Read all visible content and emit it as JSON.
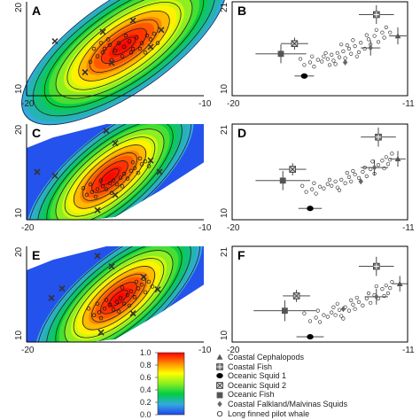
{
  "chart_data": [
    {
      "panel": "A",
      "type": "heatmap",
      "subtype": "contour-density-with-scatter",
      "xlim": [
        -20,
        -10
      ],
      "ylim": [
        10,
        20
      ],
      "xticks": [
        "-20",
        "-10"
      ],
      "yticks": [
        "10",
        "20"
      ],
      "density_peak": {
        "x": -14.5,
        "y": 15.3
      },
      "density_spread": {
        "sx": 3.6,
        "sy": 2.6,
        "rotation_deg": 35
      },
      "field_shape": "ellipse",
      "markers_x": [
        [
          -18.4,
          15.8
        ],
        [
          -15.7,
          16.8
        ],
        [
          -14.0,
          18.0
        ],
        [
          -12.4,
          17.0
        ],
        [
          -13.0,
          15.2
        ],
        [
          -15.2,
          13.5
        ],
        [
          -16.7,
          12.5
        ]
      ],
      "points": [
        [
          -15.6,
          15.0
        ],
        [
          -15.3,
          15.4
        ],
        [
          -15.0,
          14.8
        ],
        [
          -14.8,
          15.6
        ],
        [
          -14.5,
          15.2
        ],
        [
          -14.2,
          15.8
        ],
        [
          -14.0,
          15.0
        ],
        [
          -13.8,
          16.2
        ],
        [
          -13.5,
          15.6
        ],
        [
          -13.2,
          16.4
        ],
        [
          -16.0,
          14.2
        ],
        [
          -15.7,
          14.6
        ],
        [
          -14.6,
          14.2
        ],
        [
          -14.1,
          14.6
        ],
        [
          -13.6,
          15.0
        ],
        [
          -16.4,
          13.6
        ],
        [
          -15.2,
          13.8
        ],
        [
          -13.0,
          16.0
        ],
        [
          -12.8,
          16.6
        ],
        [
          -14.4,
          16.4
        ],
        [
          -15.8,
          15.6
        ],
        [
          -16.2,
          15.0
        ],
        [
          -13.3,
          14.6
        ],
        [
          -12.6,
          15.6
        ],
        [
          -15.4,
          16.0
        ]
      ]
    },
    {
      "panel": "B",
      "type": "scatter",
      "xlim": [
        -20,
        -11
      ],
      "ylim": [
        10,
        21
      ],
      "xticks": [
        "-20",
        "-11"
      ],
      "yticks": [
        "10",
        "21"
      ],
      "error_points": [
        {
          "group": "Coastal Cephalopods",
          "x": -11.5,
          "y": 17.0,
          "xerr": 0.45,
          "yerr": 1.0
        },
        {
          "group": "Coastal Fish",
          "x": -12.6,
          "y": 19.5,
          "xerr": 0.9,
          "yerr": 1.1
        },
        {
          "group": "Oceanic Squid 1",
          "x": -16.3,
          "y": 12.3,
          "xerr": 0.5,
          "yerr": 0
        },
        {
          "group": "Oceanic Squid 2",
          "x": -16.8,
          "y": 16.1,
          "xerr": 0.7,
          "yerr": 0.7
        },
        {
          "group": "Oceanic Fish",
          "x": -17.5,
          "y": 14.9,
          "xerr": 1.3,
          "yerr": 1.1
        },
        {
          "group": "Coastal Falkland/Malvinas Squids",
          "x": -14.2,
          "y": 13.9,
          "xerr": 0,
          "yerr": 0
        },
        {
          "group": "Coastal Falkland/Malvinas Squids",
          "x": -12.9,
          "y": 15.6,
          "xerr": 0.5,
          "yerr": 0.9
        }
      ],
      "points": [
        [
          -16.3,
          13.6
        ],
        [
          -16.0,
          13.9
        ],
        [
          -15.8,
          13.4
        ],
        [
          -15.6,
          14.2
        ],
        [
          -15.4,
          14.0
        ],
        [
          -15.3,
          14.6
        ],
        [
          -15.1,
          14.3
        ],
        [
          -14.9,
          14.8
        ],
        [
          -14.8,
          14.1
        ],
        [
          -14.6,
          15.0
        ],
        [
          -14.5,
          14.5
        ],
        [
          -14.3,
          15.2
        ],
        [
          -14.2,
          14.4
        ],
        [
          -14.0,
          15.5
        ],
        [
          -13.9,
          14.9
        ],
        [
          -13.7,
          15.8
        ],
        [
          -13.5,
          15.1
        ],
        [
          -13.4,
          16.2
        ],
        [
          -13.2,
          15.5
        ],
        [
          -13.0,
          16.6
        ],
        [
          -12.9,
          16.0
        ],
        [
          -12.7,
          17.0
        ],
        [
          -12.5,
          16.3
        ],
        [
          -12.3,
          17.4
        ],
        [
          -15.9,
          14.6
        ],
        [
          -15.2,
          15.0
        ],
        [
          -14.7,
          13.7
        ],
        [
          -14.1,
          15.9
        ],
        [
          -13.6,
          14.6
        ],
        [
          -13.1,
          17.1
        ],
        [
          -12.6,
          17.7
        ],
        [
          -12.2,
          16.8
        ],
        [
          -16.5,
          14.3
        ],
        [
          -15.0,
          13.6
        ],
        [
          -14.4,
          16.0
        ],
        [
          -13.8,
          16.5
        ],
        [
          -12.1,
          18.0
        ],
        [
          -11.9,
          17.4
        ]
      ]
    },
    {
      "panel": "C",
      "type": "heatmap",
      "subtype": "contour-density-with-scatter",
      "xlim": [
        -20,
        -10
      ],
      "ylim": [
        10,
        20
      ],
      "xticks": [
        "-20",
        "-10"
      ],
      "yticks": [
        "10",
        "20"
      ],
      "density_peak": {
        "x": -15.3,
        "y": 14.5
      },
      "density_spread": {
        "sx": 3.0,
        "sy": 2.2,
        "rotation_deg": 40
      },
      "field_shape": "diagonal-band",
      "markers_x": [
        [
          -15.5,
          19.3
        ],
        [
          -19.4,
          15.0
        ],
        [
          -15.0,
          18.0
        ],
        [
          -13.0,
          16.2
        ],
        [
          -12.5,
          15.0
        ],
        [
          -15.0,
          12.6
        ],
        [
          -16.0,
          11.0
        ],
        [
          -18.4,
          14.6
        ]
      ],
      "points": [
        [
          -16.6,
          12.6
        ],
        [
          -16.3,
          12.9
        ],
        [
          -16.0,
          13.2
        ],
        [
          -15.7,
          13.5
        ],
        [
          -15.5,
          13.2
        ],
        [
          -15.3,
          13.8
        ],
        [
          -15.1,
          14.1
        ],
        [
          -14.9,
          13.7
        ],
        [
          -14.7,
          14.4
        ],
        [
          -14.5,
          14.8
        ],
        [
          -14.3,
          14.3
        ],
        [
          -14.1,
          15.1
        ],
        [
          -13.9,
          15.4
        ],
        [
          -13.7,
          14.9
        ],
        [
          -13.5,
          15.8
        ],
        [
          -13.3,
          16.1
        ],
        [
          -16.8,
          13.3
        ],
        [
          -16.1,
          12.4
        ],
        [
          -15.2,
          12.8
        ],
        [
          -14.6,
          13.5
        ],
        [
          -13.6,
          16.4
        ],
        [
          -13.1,
          15.6
        ],
        [
          -14.0,
          16.0
        ],
        [
          -15.8,
          14.1
        ],
        [
          -16.4,
          13.7
        ]
      ]
    },
    {
      "panel": "D",
      "type": "scatter",
      "xlim": [
        -20,
        -11
      ],
      "ylim": [
        10,
        21
      ],
      "xticks": [
        "-20",
        "-11"
      ],
      "yticks": [
        "10",
        "21"
      ],
      "error_points": [
        {
          "group": "Coastal Cephalopods",
          "x": -11.5,
          "y": 17.0,
          "xerr": 0.4,
          "yerr": 0.9
        },
        {
          "group": "Coastal Fish",
          "x": -12.5,
          "y": 19.5,
          "xerr": 0.9,
          "yerr": 1.1
        },
        {
          "group": "Oceanic Squid 1",
          "x": -16.0,
          "y": 11.3,
          "xerr": 0.6,
          "yerr": 0
        },
        {
          "group": "Oceanic Squid 2",
          "x": -16.9,
          "y": 15.8,
          "xerr": 0.7,
          "yerr": 0.7
        },
        {
          "group": "Oceanic Fish",
          "x": -17.4,
          "y": 14.5,
          "xerr": 1.4,
          "yerr": 1.1
        },
        {
          "group": "Coastal Falkland/Malvinas Squids",
          "x": -13.4,
          "y": 14.4,
          "xerr": 0,
          "yerr": 0
        },
        {
          "group": "Coastal Falkland/Malvinas Squids",
          "x": -12.7,
          "y": 16.0,
          "xerr": 0.7,
          "yerr": 0.9
        }
      ],
      "points": [
        [
          -16.2,
          13.2
        ],
        [
          -15.9,
          13.5
        ],
        [
          -15.7,
          13.0
        ],
        [
          -15.5,
          13.8
        ],
        [
          -15.3,
          13.6
        ],
        [
          -15.1,
          14.1
        ],
        [
          -14.9,
          13.9
        ],
        [
          -14.7,
          14.4
        ],
        [
          -14.6,
          13.7
        ],
        [
          -14.4,
          14.6
        ],
        [
          -14.2,
          14.2
        ],
        [
          -14.0,
          14.9
        ],
        [
          -13.9,
          14.4
        ],
        [
          -13.7,
          15.2
        ],
        [
          -13.5,
          14.8
        ],
        [
          -13.3,
          15.5
        ],
        [
          -13.1,
          15.0
        ],
        [
          -12.9,
          15.8
        ],
        [
          -12.7,
          15.3
        ],
        [
          -12.5,
          16.3
        ],
        [
          -12.3,
          16.8
        ],
        [
          -12.1,
          17.2
        ],
        [
          -11.9,
          16.9
        ],
        [
          -15.8,
          14.2
        ],
        [
          -15.0,
          14.6
        ],
        [
          -14.5,
          13.4
        ],
        [
          -13.8,
          15.6
        ],
        [
          -13.2,
          16.0
        ],
        [
          -12.8,
          16.7
        ],
        [
          -12.2,
          15.9
        ],
        [
          -16.4,
          13.9
        ],
        [
          -14.1,
          15.4
        ],
        [
          -11.8,
          17.6
        ],
        [
          -12.0,
          16.4
        ]
      ]
    },
    {
      "panel": "E",
      "type": "heatmap",
      "subtype": "contour-density-with-scatter",
      "xlim": [
        -20,
        -10
      ],
      "ylim": [
        10,
        20
      ],
      "xticks": [
        "-20",
        "-10"
      ],
      "yticks": [
        "10",
        "20"
      ],
      "density_peak": {
        "x": -14.8,
        "y": 14.6
      },
      "density_spread": {
        "sx": 3.0,
        "sy": 2.2,
        "rotation_deg": 40
      },
      "field_shape": "diagonal-band",
      "markers_x": [
        [
          -16.0,
          19.0
        ],
        [
          -18.0,
          15.6
        ],
        [
          -15.2,
          17.9
        ],
        [
          -13.4,
          16.8
        ],
        [
          -12.6,
          15.5
        ],
        [
          -14.0,
          13.0
        ],
        [
          -15.8,
          11.0
        ],
        [
          -18.6,
          14.6
        ]
      ],
      "points": [
        [
          -16.2,
          12.8
        ],
        [
          -15.9,
          13.1
        ],
        [
          -15.6,
          13.5
        ],
        [
          -15.3,
          13.9
        ],
        [
          -15.1,
          13.4
        ],
        [
          -14.9,
          14.2
        ],
        [
          -14.7,
          14.6
        ],
        [
          -14.5,
          14.0
        ],
        [
          -14.3,
          14.9
        ],
        [
          -14.1,
          15.3
        ],
        [
          -13.9,
          14.7
        ],
        [
          -13.7,
          15.6
        ],
        [
          -13.5,
          16.0
        ],
        [
          -13.3,
          15.2
        ],
        [
          -13.1,
          16.3
        ],
        [
          -16.5,
          13.5
        ],
        [
          -15.8,
          12.5
        ],
        [
          -14.8,
          13.2
        ],
        [
          -14.2,
          13.8
        ],
        [
          -13.4,
          16.6
        ],
        [
          -12.9,
          15.8
        ],
        [
          -13.8,
          16.3
        ],
        [
          -15.5,
          14.4
        ],
        [
          -16.0,
          14.0
        ],
        [
          -14.6,
          15.7
        ]
      ]
    },
    {
      "panel": "F",
      "type": "scatter",
      "xlim": [
        -20,
        -11
      ],
      "ylim": [
        10,
        21
      ],
      "xticks": [
        "-20",
        "-11"
      ],
      "yticks": [
        "10",
        "21"
      ],
      "error_points": [
        {
          "group": "Coastal Cephalopods",
          "x": -11.4,
          "y": 16.7,
          "xerr": 0.4,
          "yerr": 0.9
        },
        {
          "group": "Coastal Fish",
          "x": -12.6,
          "y": 18.7,
          "xerr": 0.9,
          "yerr": 1.1
        },
        {
          "group": "Oceanic Squid 1",
          "x": -16.0,
          "y": 10.6,
          "xerr": 0.7,
          "yerr": 0
        },
        {
          "group": "Oceanic Squid 2",
          "x": -16.7,
          "y": 15.3,
          "xerr": 0.7,
          "yerr": 0.7
        },
        {
          "group": "Oceanic Fish",
          "x": -17.3,
          "y": 13.6,
          "xerr": 1.6,
          "yerr": 1.2
        },
        {
          "group": "Coastal Falkland/Malvinas Squids",
          "x": -14.3,
          "y": 13.8,
          "xerr": 0,
          "yerr": 0
        },
        {
          "group": "Coastal Falkland/Malvinas Squids",
          "x": -12.6,
          "y": 15.2,
          "xerr": 0.6,
          "yerr": 0.9
        }
      ],
      "points": [
        [
          -16.0,
          12.4
        ],
        [
          -15.7,
          12.8
        ],
        [
          -15.5,
          12.3
        ],
        [
          -15.3,
          13.1
        ],
        [
          -15.1,
          12.9
        ],
        [
          -14.9,
          13.4
        ],
        [
          -14.7,
          13.1
        ],
        [
          -14.5,
          13.7
        ],
        [
          -14.4,
          13.0
        ],
        [
          -14.2,
          14.0
        ],
        [
          -14.0,
          13.6
        ],
        [
          -13.8,
          14.3
        ],
        [
          -13.7,
          13.8
        ],
        [
          -13.5,
          14.6
        ],
        [
          -13.3,
          14.2
        ],
        [
          -13.1,
          15.0
        ],
        [
          -12.9,
          14.5
        ],
        [
          -12.7,
          15.4
        ],
        [
          -12.5,
          15.0
        ],
        [
          -12.3,
          16.1
        ],
        [
          -12.1,
          16.5
        ],
        [
          -11.9,
          16.2
        ],
        [
          -15.6,
          13.6
        ],
        [
          -14.8,
          14.0
        ],
        [
          -14.3,
          12.7
        ],
        [
          -13.6,
          15.1
        ],
        [
          -13.0,
          15.6
        ],
        [
          -12.6,
          16.4
        ],
        [
          -12.2,
          15.3
        ],
        [
          -16.3,
          13.3
        ],
        [
          -13.9,
          14.8
        ],
        [
          -11.8,
          16.9
        ],
        [
          -12.0,
          15.6
        ],
        [
          -14.6,
          14.4
        ]
      ]
    }
  ],
  "colorbar": {
    "ticks": [
      "1.0",
      "0.8",
      "0.6",
      "0.4",
      "0.2",
      "0.0"
    ],
    "colors": [
      "#ff0000",
      "#ff8800",
      "#ffff00",
      "#88ee22",
      "#00cc44",
      "#33aadd",
      "#2244ee"
    ]
  },
  "legend": {
    "items": [
      {
        "symbol": "triangle",
        "label": "Coastal Cephalopods"
      },
      {
        "symbol": "square-cross",
        "label": "Coastal Fish"
      },
      {
        "symbol": "ellipse-filled",
        "label": "Oceanic Squid 1"
      },
      {
        "symbol": "square-x",
        "label": "Oceanic Squid 2"
      },
      {
        "symbol": "square-filled",
        "label": "Oceanic Fish"
      },
      {
        "symbol": "diamond",
        "label": "Coastal Falkland/Malvinas Squids"
      },
      {
        "symbol": "circle-open",
        "label": "Long finned pilot whale"
      }
    ]
  }
}
